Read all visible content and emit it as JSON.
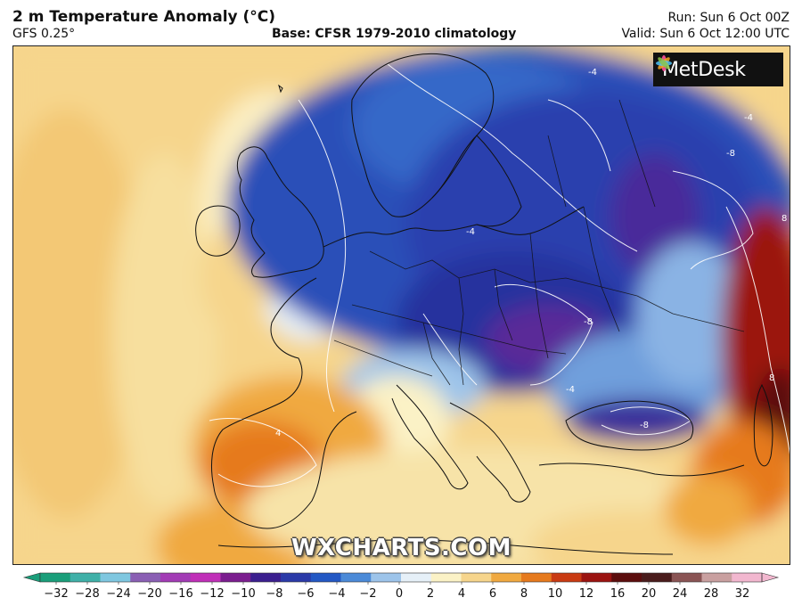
{
  "header": {
    "title": "2 m Temperature Anomaly (°C)",
    "model": "GFS 0.25°",
    "base": "Base: CFSR 1979-2010 climatology",
    "run": "Run: Sun 6 Oct 00Z",
    "valid": "Valid: Sun 6 Oct 12:00 UTC"
  },
  "branding": {
    "logo_text": "MetDesk",
    "watermark": "WXCHARTS.COM"
  },
  "map": {
    "region": "Europe",
    "contour_labels": [
      {
        "text": "-4",
        "lon_lat_hint": "Scandinavia north"
      },
      {
        "text": "-4",
        "lon_lat_hint": "Russia north"
      },
      {
        "text": "-8",
        "lon_lat_hint": "Russia west"
      },
      {
        "text": "-4",
        "lon_lat_hint": "Baltic"
      },
      {
        "text": "-8",
        "lon_lat_hint": "Romania"
      },
      {
        "text": "-8",
        "lon_lat_hint": "Black Sea / Turkey"
      },
      {
        "text": "4",
        "lon_lat_hint": "Iberia"
      },
      {
        "text": "8",
        "lon_lat_hint": "Kazakhstan"
      },
      {
        "text": "8",
        "lon_lat_hint": "Caucasus"
      },
      {
        "text": "-4",
        "lon_lat_hint": "Balkans"
      }
    ]
  },
  "colorbar": {
    "ticks": [
      "−32",
      "−28",
      "−24",
      "−20",
      "−16",
      "−12",
      "−10",
      "−8",
      "−6",
      "−4",
      "−2",
      "0",
      "2",
      "4",
      "6",
      "8",
      "10",
      "12",
      "16",
      "20",
      "24",
      "28",
      "32"
    ],
    "colors": [
      "#1a9e7a",
      "#3fb0a8",
      "#7fc7e0",
      "#8a5fb4",
      "#a23bb5",
      "#c02fb8",
      "#7b1d8f",
      "#3b1f8f",
      "#2b3aa8",
      "#2358c4",
      "#4b8ad8",
      "#9dc4ea",
      "#e6f0f8",
      "#fbf2c6",
      "#f6d58c",
      "#f0a940",
      "#e67a1d",
      "#c93a12",
      "#9b1310",
      "#5c0d0d",
      "#4a1c1c",
      "#8a5454",
      "#c9a0a0",
      "#f2b7cf"
    ]
  }
}
